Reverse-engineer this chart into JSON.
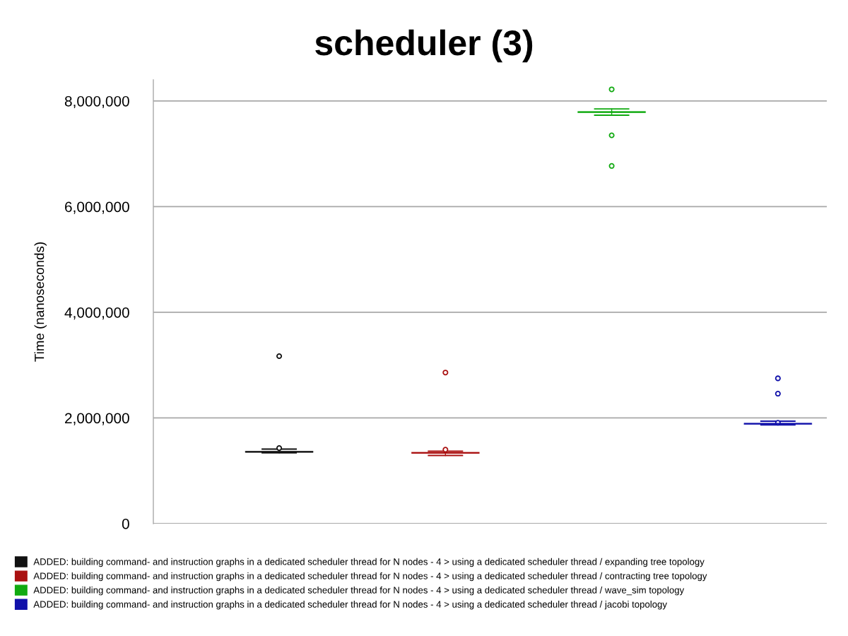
{
  "chart_data": {
    "type": "box",
    "title": "scheduler (3)",
    "ylabel": "Time (nanoseconds)",
    "categories": [
      null,
      null,
      null,
      null
    ],
    "series": [
      {
        "name": "ADDED: building command- and instruction graphs in a dedicated scheduler thread for N nodes - 4 > using a dedicated scheduler thread / expanding tree topology",
        "color": "#111111",
        "boxes": [
          {
            "low": 1340000,
            "q1": 1350000,
            "median": 1360000,
            "q3": 1370000,
            "high": 1410000,
            "outliers": [
              1430000,
              3170000
            ]
          },
          null,
          null,
          null
        ]
      },
      {
        "name": "ADDED: building command- and instruction graphs in a dedicated scheduler thread for N nodes - 4 > using a dedicated scheduler thread / contracting tree topology",
        "color": "#aa1111",
        "boxes": [
          null,
          {
            "low": 1290000,
            "q1": 1330000,
            "median": 1340000,
            "q3": 1350000,
            "high": 1370000,
            "outliers": [
              1400000,
              2860000
            ]
          },
          null,
          null
        ]
      },
      {
        "name": "ADDED: building command- and instruction graphs in a dedicated scheduler thread for N nodes - 4 > using a dedicated scheduler thread / wave_sim topology",
        "color": "#11aa11",
        "boxes": [
          null,
          null,
          {
            "low": 7730000,
            "q1": 7780000,
            "median": 7790000,
            "q3": 7800000,
            "high": 7850000,
            "outliers": [
              8220000,
              7350000,
              6770000
            ]
          },
          null
        ]
      },
      {
        "name": "ADDED: building command- and instruction graphs in a dedicated scheduler thread for N nodes - 4 > using a dedicated scheduler thread / jacobi topology",
        "color": "#1111aa",
        "boxes": [
          null,
          null,
          null,
          {
            "low": 1870000,
            "q1": 1880000,
            "median": 1890000,
            "q3": 1900000,
            "high": 1940000,
            "outliers": [
              2750000,
              2460000,
              1910000
            ]
          }
        ]
      }
    ],
    "ylim": [
      0,
      8400000
    ],
    "yticks": [
      0,
      {
        "value": 2000000,
        "label": "2,000,000"
      },
      {
        "value": 4000000,
        "label": "4,000,000"
      },
      {
        "value": 6000000,
        "label": "6,000,000"
      },
      {
        "value": 8000000,
        "label": "8,000,000"
      }
    ],
    "grid": "y",
    "legend": "bottom",
    "tick_labels": "y"
  }
}
